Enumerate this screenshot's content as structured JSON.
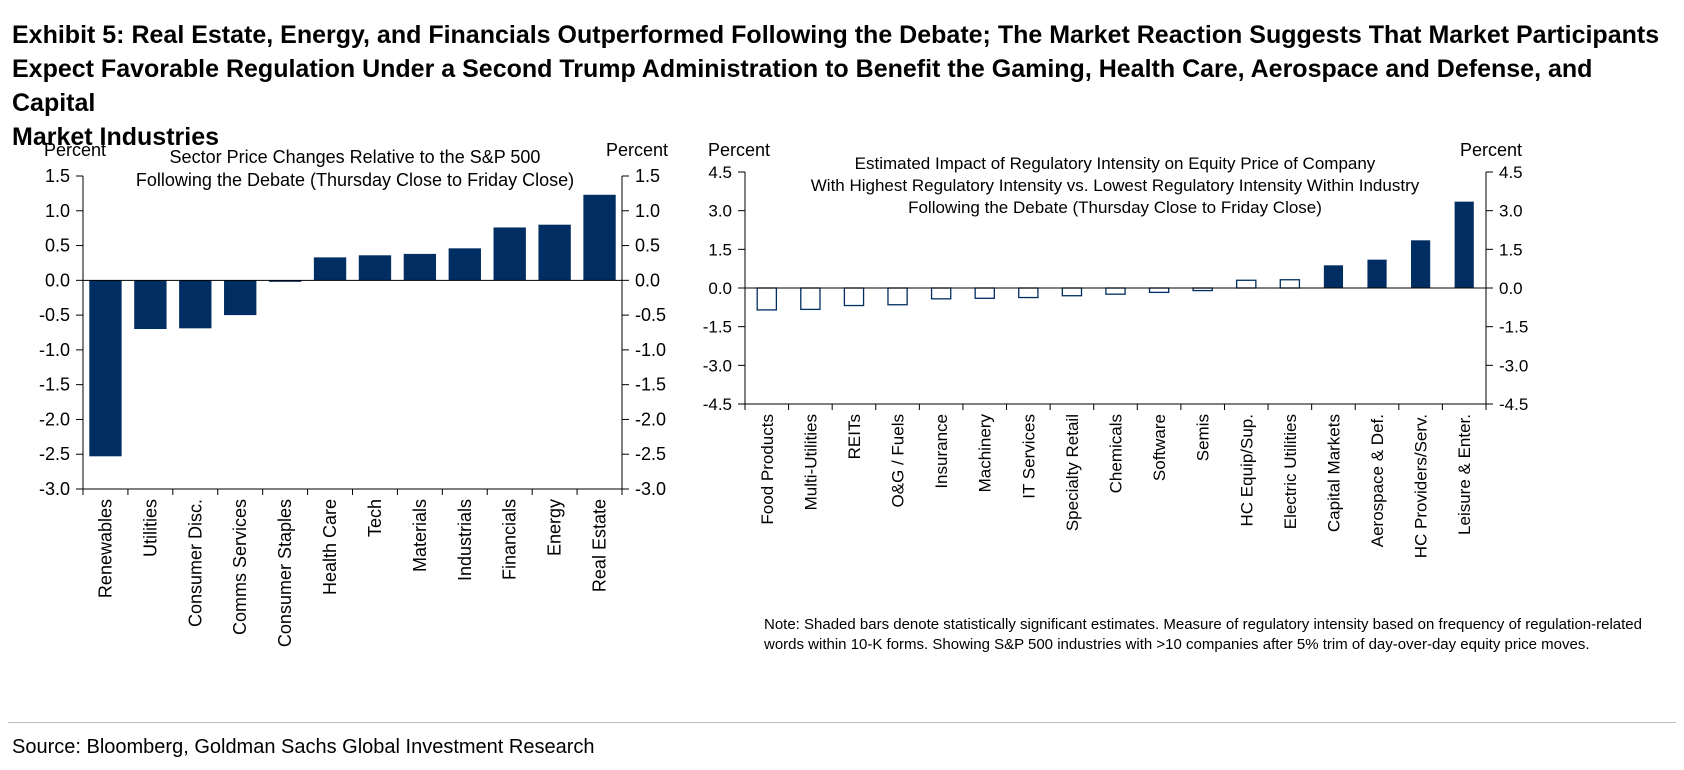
{
  "exhibit_title_lines": [
    "Exhibit 5: Real Estate, Energy, and Financials Outperformed Following the Debate; The Market Reaction Suggests That Market Participants",
    "Expect Favorable Regulation Under a Second Trump Administration to Benefit the Gaming, Health Care, Aerospace and Defense, and Capital",
    "Market Industries"
  ],
  "chart_data": [
    {
      "type": "bar",
      "title_lines": [
        "Sector Price Changes Relative to the S&P 500",
        "Following the Debate (Thursday Close to Friday Close)"
      ],
      "ylabel_left": "Percent",
      "ylabel_right": "Percent",
      "ylim": [
        -3.0,
        1.5
      ],
      "ytick_values": [
        1.5,
        1.0,
        0.5,
        0.0,
        -0.5,
        -1.0,
        -1.5,
        -2.0,
        -2.5,
        -3.0
      ],
      "ytick_labels": [
        "1.5",
        "1.0",
        "0.5",
        "0.0",
        "-0.5",
        "-1.0",
        "-1.5",
        "-2.0",
        "-2.5",
        "-3.0"
      ],
      "categories": [
        "Renewables",
        "Utilities",
        "Consumer Disc.",
        "Comms Services",
        "Consumer Staples",
        "Health Care",
        "Tech",
        "Materials",
        "Industrials",
        "Financials",
        "Energy",
        "Real Estate"
      ],
      "values": [
        -2.53,
        -0.7,
        -0.69,
        -0.5,
        -0.02,
        0.33,
        0.36,
        0.38,
        0.46,
        0.76,
        0.8,
        1.23
      ],
      "bar_color": "#002d62",
      "grid": false
    },
    {
      "type": "bar",
      "title_lines": [
        "Estimated Impact of Regulatory Intensity on Equity Price of Company",
        "With Highest Regulatory Intensity vs. Lowest Regulatory Intensity Within Industry",
        "Following the Debate (Thursday Close to Friday Close)"
      ],
      "ylabel_left": "Percent",
      "ylabel_right": "Percent",
      "ylim": [
        -4.5,
        4.5
      ],
      "ytick_values": [
        4.5,
        3.0,
        1.5,
        0.0,
        -1.5,
        -3.0,
        -4.5
      ],
      "ytick_labels": [
        "4.5",
        "3.0",
        "1.5",
        "0.0",
        "-1.5",
        "-3.0",
        "-4.5"
      ],
      "categories": [
        "Food Products",
        "Multi-Utilities",
        "REITs",
        "O&G / Fuels",
        "Insurance",
        "Machinery",
        "IT Services",
        "Specialty Retail",
        "Chemicals",
        "Software",
        "Semis",
        "HC Equip/Sup.",
        "Electric Utilities",
        "Capital Markets",
        "Aerospace & Def.",
        "HC Providers/Serv.",
        "Leisure & Enter."
      ],
      "values": [
        -0.85,
        -0.83,
        -0.68,
        -0.65,
        -0.42,
        -0.4,
        -0.37,
        -0.3,
        -0.24,
        -0.17,
        -0.1,
        0.3,
        0.32,
        0.88,
        1.1,
        1.85,
        3.35
      ],
      "significant": [
        false,
        false,
        false,
        false,
        false,
        false,
        false,
        false,
        false,
        false,
        false,
        false,
        false,
        true,
        true,
        true,
        true
      ],
      "bar_color": "#002d62",
      "grid": false
    }
  ],
  "note": "Note: Shaded bars denote statistically significant estimates. Measure of regulatory intensity based on frequency of regulation-related words within 10-K forms. Showing S&P 500 industries with >10 companies after 5% trim of day-over-day equity price moves.",
  "source": "Source: Bloomberg, Goldman Sachs Global Investment Research"
}
